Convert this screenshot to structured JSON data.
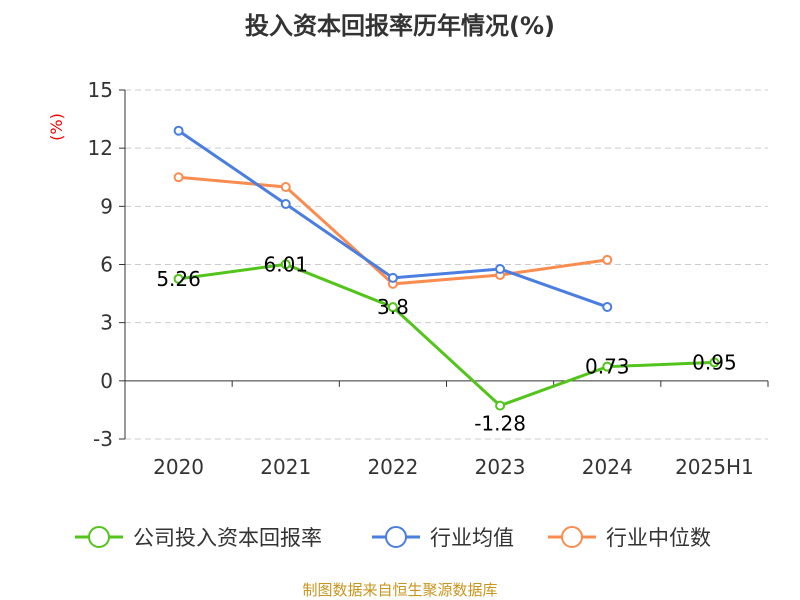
{
  "chart_data": {
    "type": "line",
    "title": "投入资本回报率历年情况(%)",
    "ylabel": "(%)",
    "xlabel": "",
    "categories": [
      "2020",
      "2021",
      "2022",
      "2023",
      "2024",
      "2025H1"
    ],
    "ylim": [
      -3,
      15
    ],
    "yticks": [
      -3,
      0,
      3,
      6,
      9,
      12,
      15
    ],
    "grid": true,
    "legend_position": "bottom",
    "series": [
      {
        "name": "公司投入资本回报率",
        "color": "#52c41a",
        "values": [
          5.26,
          6.01,
          3.8,
          -1.28,
          0.73,
          0.95
        ],
        "labels": [
          "5.26",
          "6.01",
          "3.8",
          "-1.28",
          "0.73",
          "0.95"
        ]
      },
      {
        "name": "行业均值",
        "color": "#4a7ee0",
        "values": [
          12.9,
          9.12,
          5.31,
          5.77,
          3.81,
          null
        ]
      },
      {
        "name": "行业中位数",
        "color": "#fa8c50",
        "values": [
          10.5,
          10.0,
          5.0,
          5.46,
          6.24,
          null
        ]
      }
    ],
    "source": "制图数据来自恒生聚源数据库"
  }
}
